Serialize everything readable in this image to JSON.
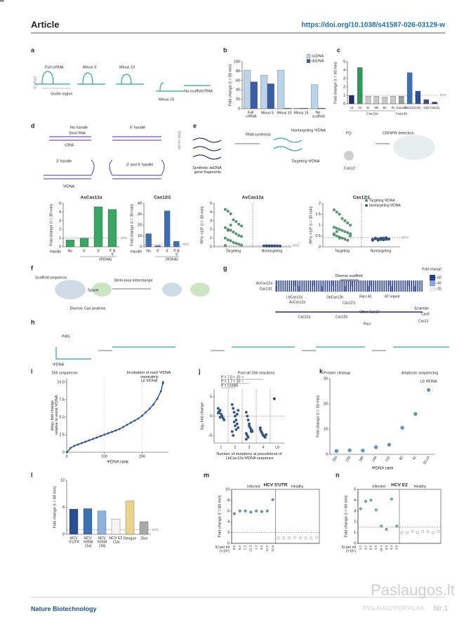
{
  "header": {
    "title": "Article",
    "doi": "https://doi.org/10.1038/s41587-026-03129-w"
  },
  "footer": {
    "journal": "Nature Biotechnology"
  },
  "watermark": {
    "site": "Paslaugos.lt",
    "tagline": "PASLAUGŲ PORTALAS",
    "badge": "Nr.1"
  },
  "diagram": {
    "a": {
      "panel": "a",
      "constructs": [
        "Full crRNA",
        "Minus 5",
        "Minus 10",
        "Minus 15",
        "No-scaffold RNA"
      ],
      "scaffold": "Scaffold",
      "guide": "Guide region"
    },
    "d": {
      "panel": "d",
      "designs": [
        "No handle",
        "5′ handle",
        "3′ handle",
        "3′ and 5′ handle"
      ],
      "short_rna": "Short RNA",
      "cdna": "cDNA",
      "dna_handle": "DNA handle",
      "psi": "ΨDNA"
    },
    "e": {
      "fragments": "Synthetic dsDNA gene fragments",
      "synthesis": "RNA synthesis",
      "nontargeting": "Nontargeting ΨDNA",
      "targeting": "Targeting ΨDNA",
      "fq": "FQ",
      "cas": "Cas12",
      "detection": "CRISPR detection"
    },
    "f": {
      "panel": "f",
      "scaffold": "Scaffold sequence",
      "spacer": "Spacer",
      "proteins": "Diverse Cas proteins",
      "interchange": "Stem-loop interchange"
    },
    "g": {
      "panel": "g",
      "title": "Diverse scaffold sequences",
      "rows": [
        "AsCas12a",
        "Cas12i1"
      ],
      "colorbar_title": "Fold change",
      "colorbar_ticks": [
        20,
        40,
        60
      ],
      "callouts": [
        "LbCas12a",
        "AsCas12a",
        "OpCas12b",
        "Cas12i1",
        "Racr A1",
        "AT repeat"
      ],
      "families": [
        "Cas12a",
        "Cas12b",
        "Other Cas12",
        "Racr",
        "Scramble",
        "Cas9",
        "Cas13"
      ]
    },
    "h": {
      "panel": "h",
      "prbs": "PrBS",
      "psi": "ΨDNA",
      "steps": [
        "256 sequences",
        "Incubation of each ΨDNA separately",
        "Pool all 256 reactions",
        "Protein cleanup",
        "Amplicon sequencing"
      ]
    }
  },
  "chart_data": [
    {
      "type": "bar",
      "panel": "b",
      "ylabel": "Fold change (t = 60 min)",
      "categories": [
        "Full crRNA",
        "Minus 5",
        "Minus 10",
        "Minus 15",
        "No scaffold"
      ],
      "series": [
        {
          "name": "ssDNA",
          "color": "#bcd4ea",
          "values": [
            82,
            71,
            82,
            1,
            51
          ]
        },
        {
          "name": "dsDNA",
          "color": "#3b5ea6",
          "values": [
            57,
            53,
            1,
            1,
            1
          ]
        }
      ],
      "ylim": [
        0,
        100
      ],
      "yticks": [
        0,
        20,
        40,
        60,
        80,
        100
      ],
      "legend": "upper right"
    },
    {
      "type": "bar",
      "panel": "c",
      "ylabel": "Fold change (t = 30 min)",
      "categories": [
        "Lb",
        "As",
        "Er",
        "Mb",
        "Bs",
        "Br",
        "Cas12b",
        "Cas12i1",
        "12i2",
        "12j2",
        "Cas12j"
      ],
      "values": [
        1,
        4.3,
        0.9,
        0.9,
        0.8,
        0.9,
        0.9,
        3.7,
        1.5,
        0.5,
        0.2
      ],
      "colors": [
        "#1f2f6b",
        "#2e9a5a",
        "#c9c9c9",
        "#c9c9c9",
        "#c9c9c9",
        "#c9c9c9",
        "#9aa0a8",
        "#3c6fb4",
        "#2b4f96",
        "#3a4f8a",
        "#1f3278"
      ],
      "group_labels": [
        "Cas12a",
        "Cas12b"
      ],
      "ylim": [
        0,
        5
      ],
      "yticks": [
        0,
        1,
        2,
        3,
        4,
        5
      ],
      "reference_line": {
        "value": 1,
        "label": "NTC"
      }
    },
    {
      "type": "bar",
      "panel": "d",
      "title": "AsCas12a",
      "ylabel": "Fold change (t = 30 min)",
      "xlabel": "Handle",
      "group_label": "(ΨDNA)",
      "categories": [
        "No",
        "5′",
        "3′",
        "3′ & 5′"
      ],
      "values": [
        0.8,
        1,
        4.6,
        4.3
      ],
      "color": "#3aa565",
      "ylim": [
        0,
        5
      ],
      "yticks": [
        0,
        1,
        2,
        3,
        4,
        5
      ],
      "reference_line": {
        "value": 1,
        "label": "NTC"
      }
    },
    {
      "type": "bar",
      "title": "Cas12i1",
      "ylabel": "Fold change (t = 30 min)",
      "xlabel": "Handle",
      "group_label": "(ΨDNA)",
      "categories": [
        "No",
        "5′",
        "3′",
        "3′ & 5′"
      ],
      "values": [
        12,
        1,
        33,
        5
      ],
      "color": "#3c6fb4",
      "ylim": [
        0,
        40
      ],
      "yticks": [
        0,
        10,
        20,
        30,
        40
      ],
      "reference_line": {
        "value": 2,
        "label": "NTC"
      }
    },
    {
      "type": "strip",
      "panel": "e",
      "title": "AsCas12a",
      "ylabel": "RFU ×10³ (t = 30 min)",
      "categories": [
        "Targeting",
        "Nontargeting"
      ],
      "colors": [
        "#4aab6d",
        "#2f5aa0"
      ],
      "values": [
        [
          4.3,
          4.1,
          3.8,
          3.1,
          2.9,
          2.6,
          2.4,
          2.2,
          2.0,
          1.9,
          1.7,
          1.5,
          1.3,
          1.2,
          1.0,
          0.8,
          0.7,
          0.5,
          0.4,
          0.3,
          0.2,
          0.15,
          1.9,
          2.5
        ],
        [
          0.1,
          0.08,
          0.12,
          0.1,
          0.09,
          0.11,
          0.07,
          0.1,
          0.13,
          0.1,
          0.08,
          0.12,
          0.09,
          0.1,
          0.11,
          0.1,
          0.08,
          0.12,
          0.1,
          0.09
        ]
      ],
      "ylim": [
        0,
        5
      ],
      "yticks": [
        0,
        1,
        2,
        3,
        4,
        5
      ],
      "reference_line": {
        "value": 0.12,
        "label": "NGC"
      }
    },
    {
      "type": "strip",
      "title": "Cas12i1",
      "ylabel": "RFU ×10³ (t = 30 min)",
      "categories": [
        "Targeting",
        "Nontargeting"
      ],
      "series": [
        {
          "name": "Targeting ΨDNA",
          "color": "#4aab6d",
          "values": [
            1.7,
            1.6,
            1.5,
            1.3,
            1.2,
            1.1,
            1.0,
            0.9,
            0.85,
            0.8,
            0.75,
            0.7,
            0.65,
            0.6,
            0.55,
            0.5,
            0.45,
            0.4,
            0.35,
            0.3,
            0.5,
            0.6,
            0.7,
            0.4
          ]
        },
        {
          "name": "Nontargeting ΨDNA",
          "color": "#2f5aa0",
          "values": [
            0.35,
            0.4,
            0.3,
            0.38,
            0.33,
            0.42,
            0.36,
            0.3,
            0.37,
            0.34,
            0.4,
            0.32,
            0.39,
            0.35,
            0.31,
            0.38,
            0.36,
            0.33,
            0.4,
            0.34
          ]
        }
      ],
      "ylim": [
        0,
        2
      ],
      "yticks": [
        0,
        0.5,
        1,
        1.5,
        2
      ],
      "reference_line": {
        "value": 0.42,
        "label": "NGC"
      },
      "legend": "upper right"
    },
    {
      "type": "scatter",
      "panel": "i",
      "ylabel": "Δlog₂ fold change relative to worst ΨDNA",
      "xlabel": "ΨDNA rank",
      "annotation": "Lb ΨDNA",
      "color": "#2f5aa0",
      "x": [
        1,
        10,
        20,
        30,
        40,
        50,
        60,
        70,
        80,
        90,
        100,
        110,
        120,
        130,
        140,
        150,
        160,
        170,
        180,
        190,
        200,
        210,
        220,
        230,
        240,
        250,
        255,
        256
      ],
      "values": [
        0,
        0.6,
        0.9,
        1.1,
        1.3,
        1.5,
        1.7,
        1.9,
        2.1,
        2.3,
        2.5,
        2.7,
        2.9,
        3.1,
        3.3,
        3.6,
        3.9,
        4.2,
        4.5,
        4.8,
        5.2,
        5.7,
        6.2,
        6.8,
        7.6,
        8.7,
        9.8,
        10
      ],
      "xlim": [
        0,
        270
      ],
      "xticks": [
        0,
        100,
        200
      ],
      "ylim": [
        0,
        10.5
      ],
      "yticks": [
        0,
        2.5,
        {
          "value": 5,
          "label": "5.0"
        },
        7.5,
        {
          "value": 10,
          "label": "10.0"
        }
      ],
      "grid": "x"
    },
    {
      "type": "strip",
      "panel": "j",
      "ylabel": "log₂ fold change",
      "xlabel": "Number of mutations at pseudoknot of LbCas12a ΨDNA sequence",
      "categories": [
        "1",
        "2",
        "3",
        "4",
        "Lb"
      ],
      "colors": [
        "#2f5aa0",
        "#2f5aa0",
        "#2f5aa0",
        "#2f5aa0",
        "#1f3278"
      ],
      "values": [
        [
          2,
          1,
          1.5,
          0.5,
          0,
          -0.5,
          -1,
          0.8,
          1.2,
          -0.3
        ],
        [
          3,
          2,
          1,
          0,
          -1,
          -2,
          -3,
          -4,
          -5,
          -1.5,
          -2.5,
          -3.5,
          0.5,
          1.5
        ],
        [
          1,
          0,
          -1,
          -2,
          -3,
          -3.5,
          -4,
          -4.5,
          -5,
          -5.5,
          -2.5,
          -3,
          -4,
          -3.8,
          -6
        ],
        [
          -3,
          -4,
          -4.5,
          -5,
          -5.2,
          -5.5,
          -4.8,
          -3.5
        ],
        [
          4.5
        ]
      ],
      "annotations": [
        "P = 0.0085",
        "P = 1.7 × 10⁻⁵",
        "P = 7.0 × 10⁻⁸"
      ],
      "ylim": [
        -7,
        7
      ],
      "yticks": [
        -5,
        0,
        5
      ],
      "reference_line": {
        "value": 0
      }
    },
    {
      "type": "scatter",
      "panel": "k",
      "ylabel": "Fold change (t = 30 min)",
      "xlabel": "ΨDNA rank",
      "annotation": "Lb ΨDNA",
      "color": "#5a9bd5",
      "categories": [
        "255",
        "226",
        "186",
        "146",
        "132",
        "82",
        "42",
        "20,Lb"
      ],
      "values": [
        1.3,
        1.6,
        1.5,
        2.8,
        3.8,
        10.5,
        16,
        25.5
      ],
      "ylim": [
        0,
        30
      ],
      "yticks": [
        0,
        10,
        20,
        30
      ]
    },
    {
      "type": "bar",
      "panel": "l",
      "ylabel": "Fold change (t = 60 min)",
      "categories": [
        "HCV 5′UTR",
        "HCV NS5B (1a)",
        "HCV NS5B (1b)",
        "HCV E2 (1a)",
        "Dengue",
        "Zika"
      ],
      "values": [
        5.6,
        5.7,
        5.2,
        3.4,
        7.4,
        2.8
      ],
      "colors": [
        "#2b4f96",
        "#3c6fb4",
        "#8fb2dc",
        "#f4f4f4",
        "#e8d48a",
        "#a9a9a9"
      ],
      "ylim": [
        0,
        12
      ],
      "yticks": [
        0,
        6,
        12
      ],
      "reference_line": {
        "value": 1,
        "label": "NTC"
      }
    },
    {
      "type": "strip",
      "panel": "m",
      "title": "HCV 5′UTR",
      "ylabel": "Fold change (t = 60 min)",
      "xlabel": "IU per ml (×10⁶)",
      "categories": [
        "Infected",
        "Healthy"
      ],
      "colors": [
        "#5a9bd5",
        "#ffffff"
      ],
      "values": [
        [
          5.5,
          6,
          6,
          5.8,
          6,
          5.9,
          6,
          8.1
        ],
        [
          1,
          1,
          1,
          1.1,
          1,
          1,
          1,
          1.1
        ]
      ],
      "point_labels": [
        "8.6",
        "6.3",
        "2.3",
        "22.3",
        "1.3",
        "0.5",
        "11.2",
        "21.6"
      ],
      "ylim": [
        0,
        10
      ],
      "yticks": [
        0,
        2,
        4,
        6,
        8,
        10
      ],
      "reference_line": {
        "value": 2
      }
    },
    {
      "type": "strip",
      "panel": "n",
      "title": "HCV E2",
      "ylabel": "Fold change (t = 60 min)",
      "xlabel": "IU per ml (×10⁶)",
      "categories": [
        "Infected",
        "Healthy"
      ],
      "colors": [
        "#6cc08a",
        "#ffffff"
      ],
      "values": [
        [
          3.2,
          3.9,
          4,
          3.1,
          1.6,
          1.3,
          4.1,
          1.6
        ],
        [
          1,
          1,
          1.1,
          1,
          1.1,
          1.1,
          1,
          1.1
        ]
      ],
      "point_labels": [
        "2.7",
        "3.2",
        "6.5",
        "2.9",
        "16.4",
        "5.5",
        "3.4",
        "3.8"
      ],
      "ylim": [
        0,
        5
      ],
      "yticks": [
        0,
        1,
        2,
        3,
        4,
        5
      ],
      "reference_line": {
        "value": 1.5
      }
    }
  ]
}
